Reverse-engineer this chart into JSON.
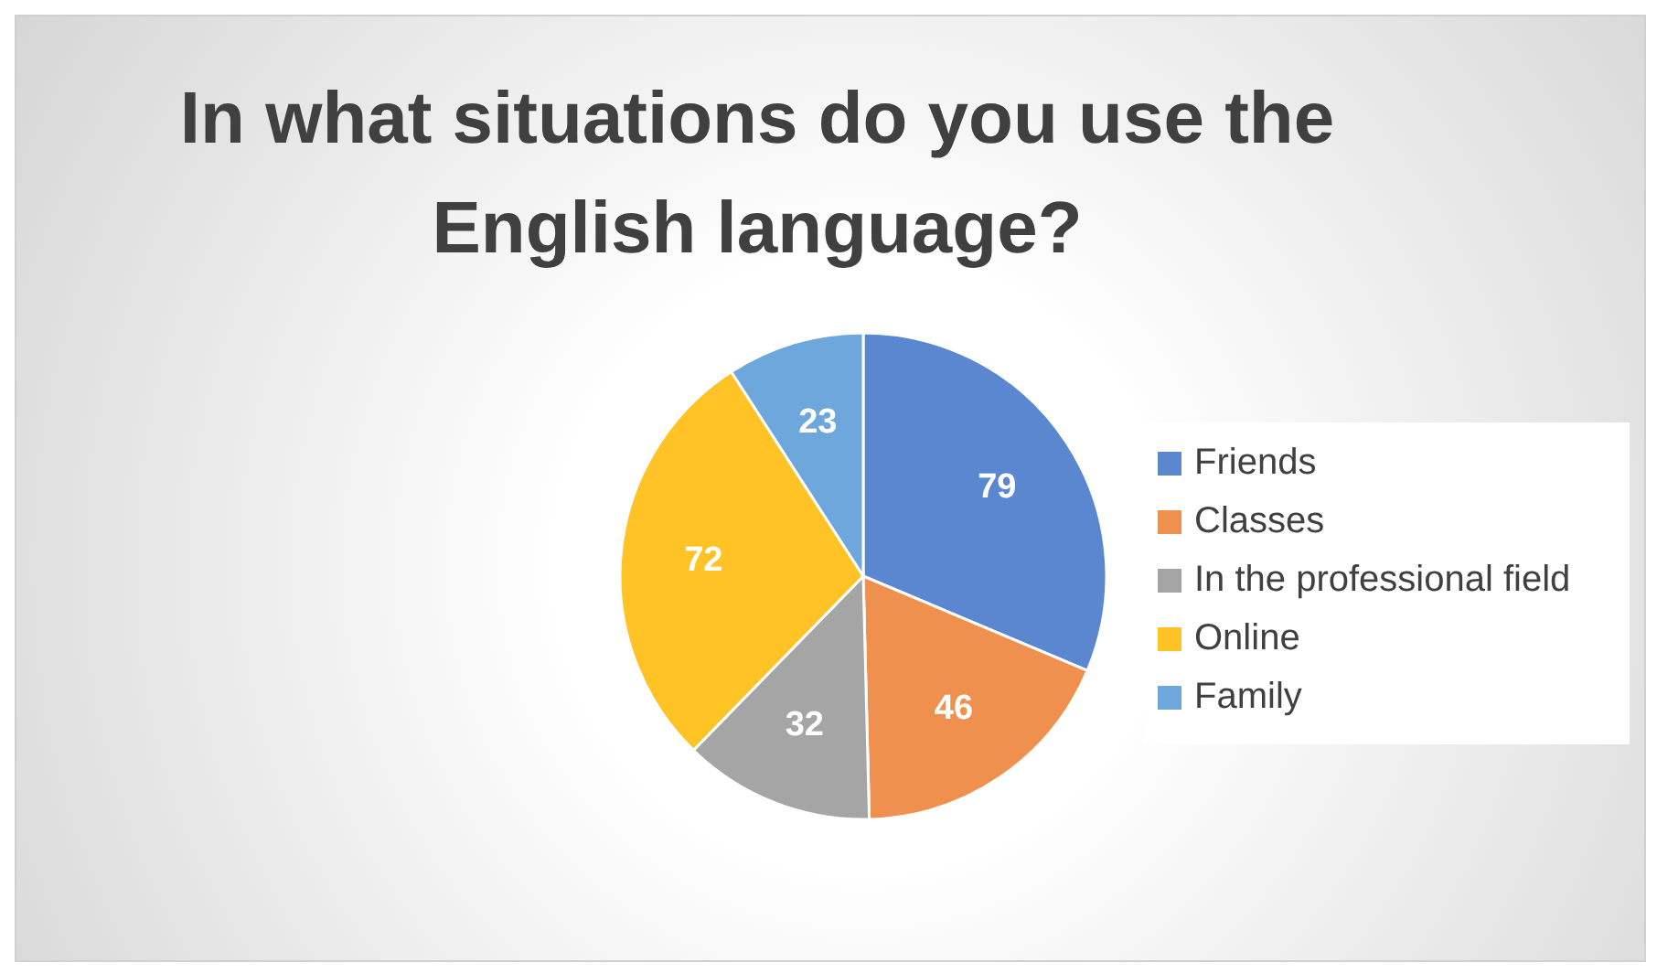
{
  "chart_data": {
    "type": "pie",
    "title": "In what situations do you use the English language?",
    "categories": [
      "Friends",
      "Classes",
      "In the professional field",
      "Online",
      "Family"
    ],
    "values": [
      79,
      46,
      32,
      72,
      23
    ],
    "colors": [
      "#5b87d1",
      "#f0904f",
      "#a5a5a5",
      "#ffc325",
      "#6ea7dc"
    ],
    "data_labels": true,
    "legend": "right"
  }
}
